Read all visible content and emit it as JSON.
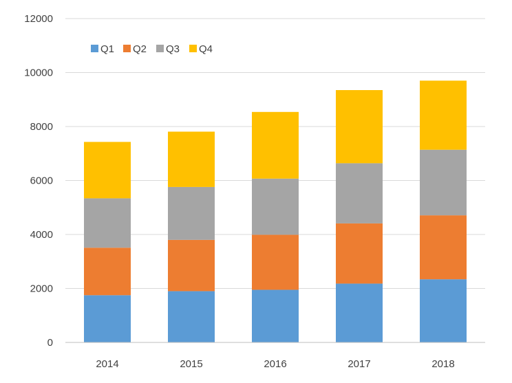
{
  "chart_data": {
    "type": "bar",
    "stacked": true,
    "title": "",
    "xlabel": "",
    "ylabel": "",
    "categories": [
      "2014",
      "2015",
      "2016",
      "2017",
      "2018"
    ],
    "series": [
      {
        "name": "Q1",
        "color": "#5B9BD5",
        "values": [
          1750,
          1900,
          1950,
          2180,
          2340
        ]
      },
      {
        "name": "Q2",
        "color": "#ED7D31",
        "values": [
          1760,
          1900,
          2040,
          2230,
          2370
        ]
      },
      {
        "name": "Q3",
        "color": "#A5A5A5",
        "values": [
          1830,
          1960,
          2080,
          2230,
          2430
        ]
      },
      {
        "name": "Q4",
        "color": "#FFC000",
        "values": [
          2090,
          2050,
          2470,
          2710,
          2560
        ]
      }
    ],
    "ylim": [
      0,
      12000
    ],
    "yticks": [
      "0",
      "2000",
      "4000",
      "6000",
      "8000",
      "10000",
      "12000"
    ],
    "grid": true,
    "legend_position": "top-left"
  }
}
